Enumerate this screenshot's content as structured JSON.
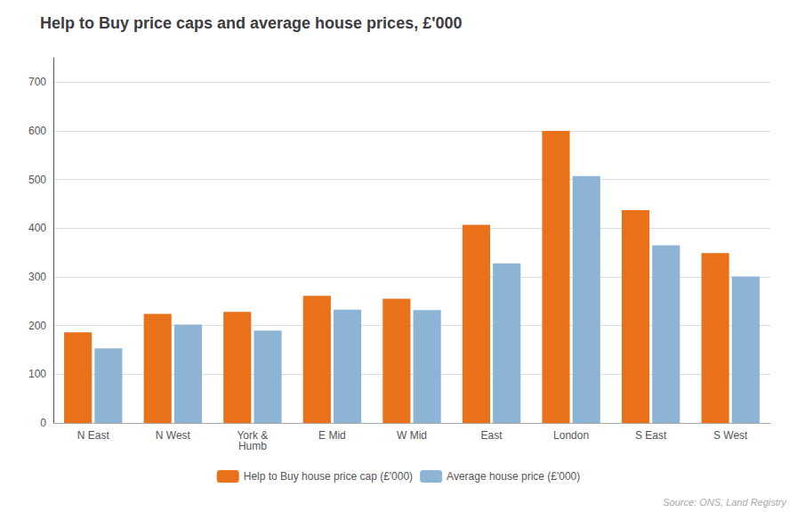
{
  "chart_data": {
    "type": "bar",
    "title": "Help to Buy price caps and average house prices, £'000",
    "categories": [
      "N East",
      "N West",
      "York &\nHumb",
      "E Mid",
      "W Mid",
      "East",
      "London",
      "S East",
      "S West"
    ],
    "series": [
      {
        "name": "Help to Buy house price cap (£'000)",
        "color": "#E8711A",
        "values": [
          186,
          224,
          228,
          261,
          255,
          407,
          600,
          437,
          349
        ]
      },
      {
        "name": "Average house price (£'000)",
        "color": "#8DB4D5",
        "values": [
          153,
          202,
          190,
          233,
          232,
          328,
          507,
          365,
          301
        ]
      }
    ],
    "ylim": [
      0,
      750
    ],
    "yticks": [
      0,
      100,
      200,
      300,
      400,
      500,
      600,
      700
    ],
    "grid": true,
    "legend": "bottom",
    "annotations": [
      "Source: ONS, Land Registry"
    ]
  }
}
